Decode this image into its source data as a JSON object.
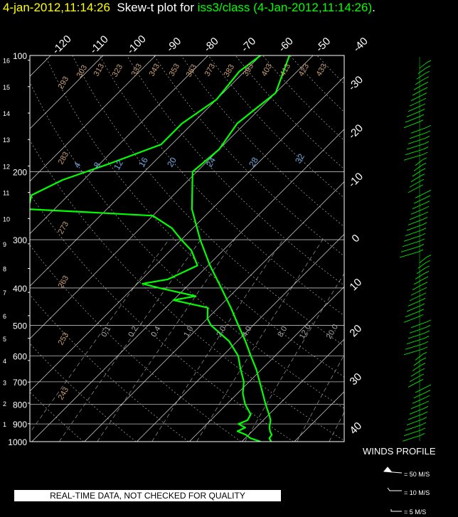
{
  "title": {
    "datetime": "4-jan-2012,11:14:26",
    "middle": "  Skew-t plot for ",
    "platform": "iss3/class",
    "when": " (4-Jan-2012,11:14:26)",
    "end": "."
  },
  "chart_data": {
    "type": "line",
    "subtype": "skew-t",
    "pressure_ticks": [
      "100",
      "200",
      "300",
      "400",
      "500",
      "600",
      "700",
      "800",
      "900",
      "1000"
    ],
    "height_ticks": [
      "1",
      "2",
      "3",
      "4",
      "5",
      "6",
      "7",
      "8",
      "9",
      "10",
      "11",
      "12",
      "13",
      "14",
      "15",
      "16"
    ],
    "temperature_ticks_top": [
      "-120",
      "-110",
      "-100",
      "-90",
      "-80",
      "-70",
      "-60",
      "-50",
      "-40"
    ],
    "temperature_ticks_right": [
      "-30",
      "-20",
      "-10",
      "0",
      "10",
      "20",
      "30",
      "40"
    ],
    "dry_adiabat_labels": [
      "293",
      "303",
      "313",
      "323",
      "333",
      "343",
      "353",
      "363",
      "373",
      "383",
      "393",
      "403",
      "413",
      "423",
      "433",
      "283",
      "273",
      "263",
      "253",
      "243"
    ],
    "mixing_ratio_labels_upper": [
      "4",
      "8",
      "12",
      "16",
      "20",
      "24",
      "28",
      "32"
    ],
    "mixing_ratio_labels_lower": [
      "0.1",
      "0.2",
      "0.4",
      "1.0",
      "2.0",
      "4.0",
      "8.0",
      "12.0",
      "20.0"
    ],
    "series": [
      {
        "name": "temperature",
        "color": "#00ff00",
        "points": [
          [
            1000,
            5.6
          ],
          [
            980,
            4.6
          ],
          [
            960,
            4.4
          ],
          [
            940,
            3.4
          ],
          [
            920,
            2.6
          ],
          [
            900,
            2.0
          ],
          [
            880,
            1.4
          ],
          [
            850,
            0.0
          ],
          [
            800,
            -2.6
          ],
          [
            750,
            -5.2
          ],
          [
            700,
            -8.0
          ],
          [
            650,
            -11.0
          ],
          [
            600,
            -14.6
          ],
          [
            550,
            -18.4
          ],
          [
            500,
            -22.8
          ],
          [
            450,
            -27.6
          ],
          [
            400,
            -33.2
          ],
          [
            350,
            -39.6
          ],
          [
            300,
            -46.4
          ],
          [
            250,
            -53.8
          ],
          [
            200,
            -60.8
          ],
          [
            175,
            -60.0
          ],
          [
            150,
            -61.5
          ],
          [
            125,
            -60.0
          ],
          [
            100,
            -64.5
          ]
        ]
      },
      {
        "name": "dewpoint",
        "color": "#00ff00",
        "points": [
          [
            1000,
            3.6
          ],
          [
            980,
            1.0
          ],
          [
            960,
            -0.5
          ],
          [
            940,
            -2.8
          ],
          [
            920,
            -2.0
          ],
          [
            900,
            -4.0
          ],
          [
            880,
            -3.0
          ],
          [
            850,
            -3.5
          ],
          [
            800,
            -6.5
          ],
          [
            750,
            -9.0
          ],
          [
            700,
            -11.0
          ],
          [
            650,
            -14.0
          ],
          [
            600,
            -17.0
          ],
          [
            550,
            -21.5
          ],
          [
            500,
            -28.0
          ],
          [
            480,
            -30.0
          ],
          [
            450,
            -32.0
          ],
          [
            430,
            -40.0
          ],
          [
            420,
            -36.5
          ],
          [
            400,
            -45.0
          ],
          [
            390,
            -49.0
          ],
          [
            380,
            -45.0
          ],
          [
            350,
            -42.0
          ],
          [
            320,
            -46.0
          ],
          [
            300,
            -50.0
          ],
          [
            280,
            -54.0
          ],
          [
            260,
            -60.0
          ],
          [
            255,
            -72.0
          ],
          [
            250,
            -85.0
          ],
          [
            230,
            -87.0
          ],
          [
            210,
            -84.0
          ],
          [
            190,
            -78.0
          ],
          [
            170,
            -72.0
          ],
          [
            150,
            -72.0
          ],
          [
            130,
            -70.0
          ],
          [
            110,
            -71.0
          ],
          [
            100,
            -70.0
          ]
        ]
      }
    ],
    "winds_title": "WINDS PROFILE",
    "wind_legend": [
      "= 50 M/S",
      "= 10 M/S",
      "= 5 M/S"
    ]
  },
  "footer": {
    "disclaimer": "REAL-TIME DATA, NOT CHECKED FOR QUALITY"
  }
}
